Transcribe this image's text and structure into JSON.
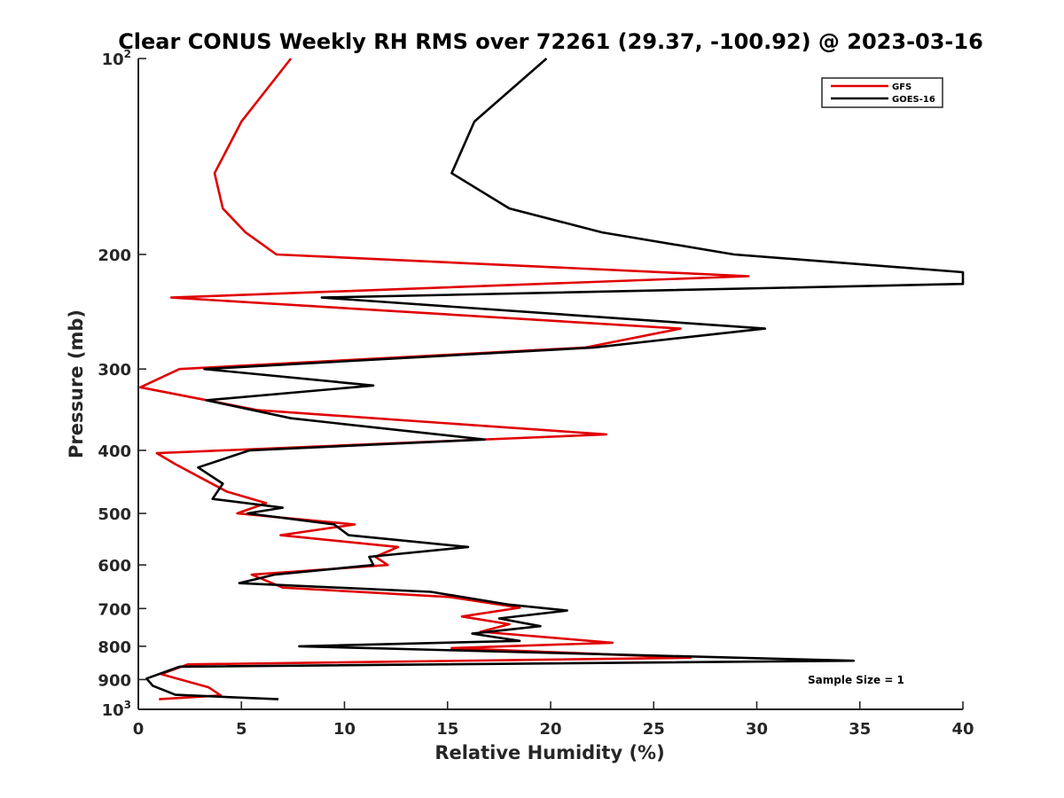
{
  "chart_data": {
    "type": "line",
    "title": "Clear CONUS Weekly RH RMS over 72261 (29.37, -100.92) @ 2023-03-16",
    "xlabel": "Relative Humidity (%)",
    "ylabel": "Pressure (mb)",
    "xlim": [
      0,
      40
    ],
    "ylim": [
      100,
      1000
    ],
    "y_scale": "log",
    "y_reversed": true,
    "x_ticks": [
      0,
      5,
      10,
      15,
      20,
      25,
      30,
      35,
      40
    ],
    "x_tick_labels": [
      "0",
      "5",
      "10",
      "15",
      "20",
      "25",
      "30",
      "35",
      "40"
    ],
    "y_ticks": [
      100,
      200,
      300,
      400,
      500,
      600,
      700,
      800,
      900,
      1000
    ],
    "y_tick_labels": [
      {
        "base": "10",
        "exp": "2"
      },
      {
        "base": "200",
        "exp": ""
      },
      {
        "base": "300",
        "exp": ""
      },
      {
        "base": "400",
        "exp": ""
      },
      {
        "base": "500",
        "exp": ""
      },
      {
        "base": "600",
        "exp": ""
      },
      {
        "base": "700",
        "exp": ""
      },
      {
        "base": "800",
        "exp": ""
      },
      {
        "base": "900",
        "exp": ""
      },
      {
        "base": "10",
        "exp": "3"
      }
    ],
    "grid": false,
    "legend_position": "top-right",
    "annotation": "Sample Size = 1",
    "series": [
      {
        "name": "GFS",
        "color": "#e00000",
        "points": [
          [
            7.4,
            100
          ],
          [
            5.0,
            125
          ],
          [
            3.7,
            150
          ],
          [
            4.1,
            170
          ],
          [
            5.2,
            185
          ],
          [
            6.7,
            200
          ],
          [
            29.6,
            216
          ],
          [
            1.6,
            233
          ],
          [
            26.3,
            260
          ],
          [
            21.7,
            278
          ],
          [
            2.0,
            300
          ],
          [
            0.1,
            320
          ],
          [
            5.8,
            347
          ],
          [
            22.7,
            378
          ],
          [
            0.9,
            404
          ],
          [
            1.8,
            420
          ],
          [
            3.1,
            442
          ],
          [
            4.3,
            463
          ],
          [
            6.2,
            482
          ],
          [
            4.8,
            500
          ],
          [
            10.5,
            520
          ],
          [
            6.9,
            540
          ],
          [
            12.6,
            563
          ],
          [
            11.5,
            583
          ],
          [
            12.1,
            600
          ],
          [
            5.5,
            621
          ],
          [
            7.0,
            650
          ],
          [
            15.1,
            672
          ],
          [
            18.5,
            698
          ],
          [
            15.7,
            720
          ],
          [
            18.0,
            740
          ],
          [
            16.6,
            760
          ],
          [
            23.0,
            790
          ],
          [
            15.2,
            805
          ],
          [
            26.8,
            833
          ],
          [
            2.4,
            853
          ],
          [
            1.1,
            883
          ],
          [
            3.4,
            925
          ],
          [
            4.0,
            952
          ],
          [
            1.0,
            965
          ]
        ]
      },
      {
        "name": "GOES-16",
        "color": "#000000",
        "points": [
          [
            19.8,
            100
          ],
          [
            16.3,
            125
          ],
          [
            15.2,
            150
          ],
          [
            18.0,
            170
          ],
          [
            22.5,
            185
          ],
          [
            28.9,
            200
          ],
          [
            40.0,
            213
          ],
          [
            40.0,
            222
          ],
          [
            8.9,
            233
          ],
          [
            30.4,
            260
          ],
          [
            22.1,
            278
          ],
          [
            3.2,
            300
          ],
          [
            11.4,
            318
          ],
          [
            3.3,
            335
          ],
          [
            7.4,
            357
          ],
          [
            16.8,
            385
          ],
          [
            5.4,
            400
          ],
          [
            2.9,
            425
          ],
          [
            4.1,
            450
          ],
          [
            3.6,
            475
          ],
          [
            7.0,
            490
          ],
          [
            5.3,
            500
          ],
          [
            9.5,
            520
          ],
          [
            10.2,
            540
          ],
          [
            16.0,
            563
          ],
          [
            11.2,
            583
          ],
          [
            11.4,
            600
          ],
          [
            6.6,
            621
          ],
          [
            4.9,
            640
          ],
          [
            14.2,
            660
          ],
          [
            17.9,
            690
          ],
          [
            20.8,
            705
          ],
          [
            17.5,
            725
          ],
          [
            19.5,
            745
          ],
          [
            16.2,
            765
          ],
          [
            18.5,
            785
          ],
          [
            7.8,
            800
          ],
          [
            34.7,
            842
          ],
          [
            2.0,
            860
          ],
          [
            0.4,
            897
          ],
          [
            0.7,
            920
          ],
          [
            1.8,
            950
          ],
          [
            6.8,
            965
          ]
        ]
      }
    ]
  }
}
